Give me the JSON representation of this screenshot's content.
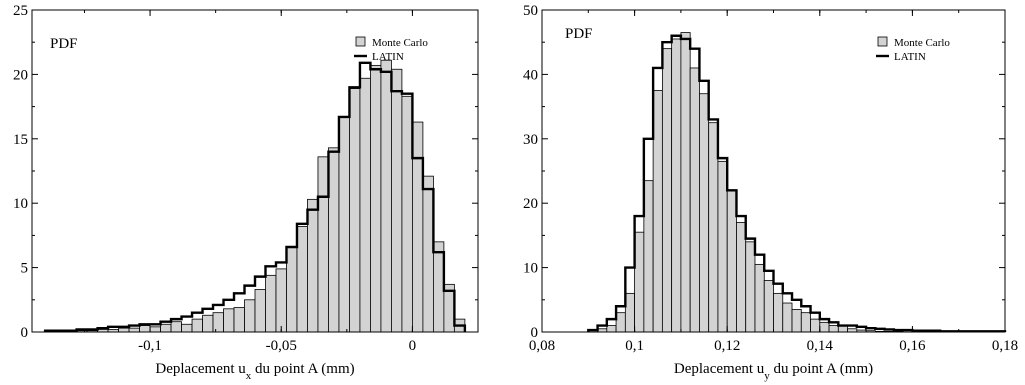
{
  "chart_data": [
    {
      "type": "bar",
      "annotation": "PDF",
      "xlabel": {
        "main": "Deplacement u",
        "sub": "x",
        "rest": " du point A (mm)"
      },
      "xlim": [
        -0.145,
        0.025
      ],
      "ylim": [
        0,
        25
      ],
      "xticks": [
        -0.1,
        -0.05,
        0
      ],
      "xtick_labels": [
        "-0,1",
        "-0,05",
        "0"
      ],
      "yticks": [
        0,
        5,
        10,
        15,
        20,
        25
      ],
      "ytick_labels": [
        "0",
        "5",
        "10",
        "15",
        "20",
        "25"
      ],
      "legend": {
        "position": "top-right",
        "entries": [
          "Monte Carlo",
          "LATIN"
        ]
      },
      "bin_start": -0.14,
      "bin_width": 0.004,
      "series": [
        {
          "name": "Monte Carlo",
          "kind": "histogram",
          "values": [
            0.1,
            0.1,
            0.1,
            0.1,
            0.1,
            0.2,
            0.2,
            0.3,
            0.3,
            0.5,
            0.4,
            0.6,
            0.8,
            0.6,
            1.0,
            1.3,
            1.5,
            1.8,
            1.9,
            2.5,
            3.3,
            4.4,
            4.9,
            6.6,
            8.2,
            10.3,
            13.6,
            14.3,
            16.7,
            18.9,
            19.7,
            20.7,
            21.1,
            20.4,
            18.3,
            16.3,
            12.1,
            7.0,
            3.7,
            1.0
          ]
        },
        {
          "name": "LATIN",
          "kind": "step",
          "values": [
            0.1,
            0.1,
            0.1,
            0.2,
            0.2,
            0.3,
            0.4,
            0.4,
            0.5,
            0.6,
            0.6,
            0.8,
            1.0,
            1.2,
            1.5,
            1.8,
            2.1,
            2.5,
            3.0,
            3.6,
            4.3,
            5.1,
            5.4,
            6.6,
            8.4,
            9.5,
            10.5,
            14.0,
            16.7,
            19.0,
            20.9,
            20.4,
            20.2,
            18.7,
            18.5,
            13.5,
            11.1,
            6.2,
            3.2,
            0.5
          ]
        }
      ]
    },
    {
      "type": "bar",
      "annotation": "PDF",
      "xlabel": {
        "main": "Deplacement u",
        "sub": "y",
        "rest": " du point A (mm)"
      },
      "xlim": [
        0.08,
        0.18
      ],
      "ylim": [
        0,
        50
      ],
      "xticks": [
        0.08,
        0.1,
        0.12,
        0.14,
        0.16,
        0.18
      ],
      "xtick_labels": [
        "0,08",
        "0,1",
        "0,12",
        "0,14",
        "0,16",
        "0,18"
      ],
      "yticks": [
        0,
        10,
        20,
        30,
        40,
        50
      ],
      "ytick_labels": [
        "0",
        "10",
        "20",
        "30",
        "40",
        "50"
      ],
      "legend": {
        "position": "top-right",
        "entries": [
          "Monte Carlo",
          "LATIN"
        ]
      },
      "bin_start": 0.09,
      "bin_width": 0.002,
      "series": [
        {
          "name": "Monte Carlo",
          "kind": "histogram",
          "values": [
            0.3,
            0.5,
            1.0,
            3.0,
            6.0,
            15.5,
            23.5,
            37.5,
            44.0,
            45.5,
            46.5,
            41.0,
            37.0,
            32.5,
            26.5,
            22.0,
            17.0,
            14.0,
            10.5,
            8.0,
            6.0,
            4.5,
            3.5,
            3.0,
            2.0,
            1.5,
            1.0,
            1.0,
            0.5,
            0.3,
            0.2,
            0.1,
            0.1,
            0.1,
            0.0,
            0.0,
            0.0,
            0.0,
            0.0,
            0.0,
            0.0,
            0.0,
            0.0,
            0.0,
            0.0
          ]
        },
        {
          "name": "LATIN",
          "kind": "step",
          "values": [
            0.3,
            1.0,
            2.0,
            4.0,
            10.0,
            18.0,
            30.0,
            41.0,
            45.0,
            46.0,
            45.5,
            44.0,
            39.0,
            33.0,
            27.0,
            22.0,
            18.0,
            14.5,
            12.0,
            9.5,
            7.5,
            6.0,
            5.0,
            4.0,
            3.0,
            2.0,
            1.5,
            1.0,
            1.0,
            0.8,
            0.6,
            0.5,
            0.4,
            0.3,
            0.3,
            0.2,
            0.2,
            0.2,
            0.1,
            0.1,
            0.1,
            0.1,
            0.1,
            0.1,
            0.1
          ]
        }
      ]
    }
  ]
}
